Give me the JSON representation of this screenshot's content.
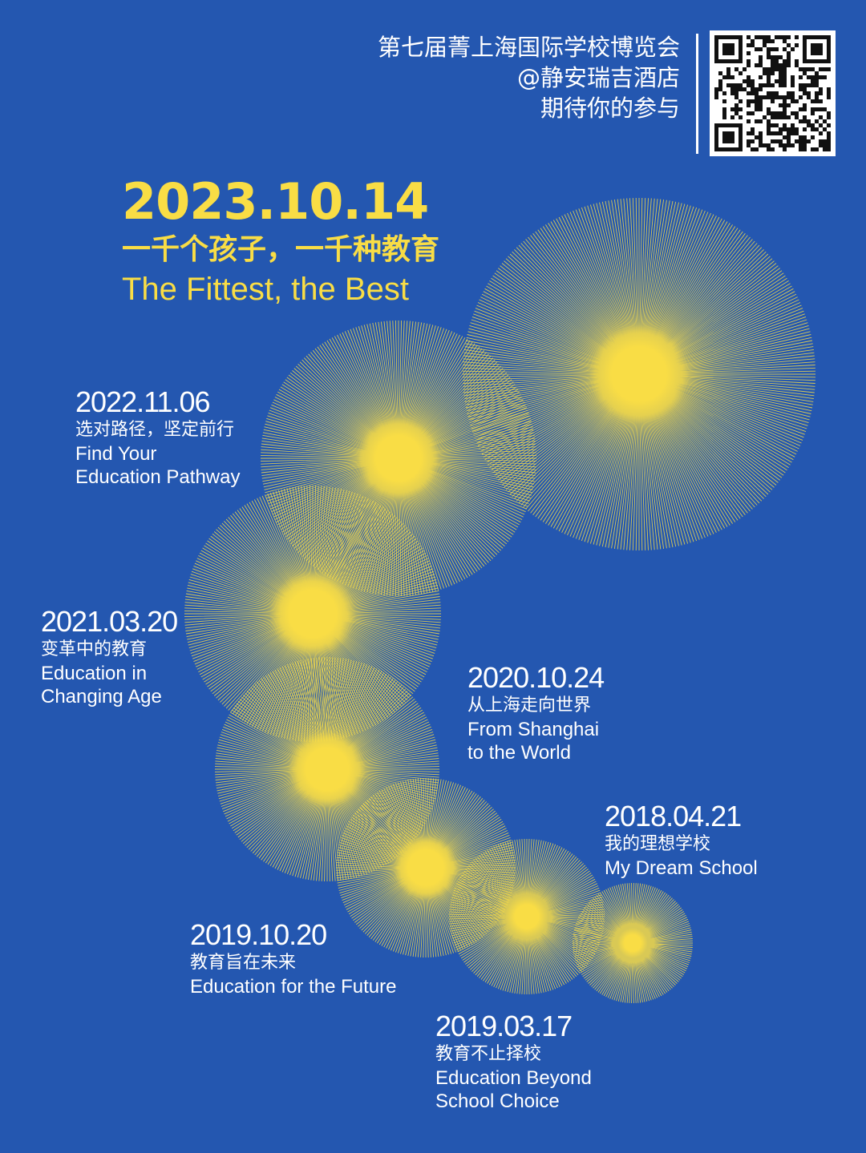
{
  "colors": {
    "background": "#2457b0",
    "accent": "#f9dd45",
    "text": "#ffffff"
  },
  "header": {
    "lines": [
      "第七届菁上海国际学校博览会",
      "@静安瑞吉酒店",
      "期待你的参与"
    ],
    "qr_icon": "qr-code-icon"
  },
  "hero": {
    "date": "2023.10.14",
    "title_zh": "一千个孩子，一千种教育",
    "title_en": "The Fittest, the Best"
  },
  "milestones": [
    {
      "date": "2022.11.06",
      "zh": "选对路径，坚定前行",
      "en_lines": [
        "Find Your",
        "Education Pathway"
      ]
    },
    {
      "date": "2021.03.20",
      "zh": "变革中的教育",
      "en_lines": [
        "Education in",
        "Changing Age"
      ]
    },
    {
      "date": "2020.10.24",
      "zh": "从上海走向世界",
      "en_lines": [
        "From Shanghai",
        "to the World"
      ]
    },
    {
      "date": "2018.04.21",
      "zh": "我的理想学校",
      "en_lines": [
        "My Dream School"
      ]
    },
    {
      "date": "2019.10.20",
      "zh": "教育旨在未来",
      "en_lines": [
        "Education for the Future"
      ]
    },
    {
      "date": "2019.03.17",
      "zh": "教育不止择校",
      "en_lines": [
        "Education Beyond",
        "School Choice"
      ]
    }
  ]
}
